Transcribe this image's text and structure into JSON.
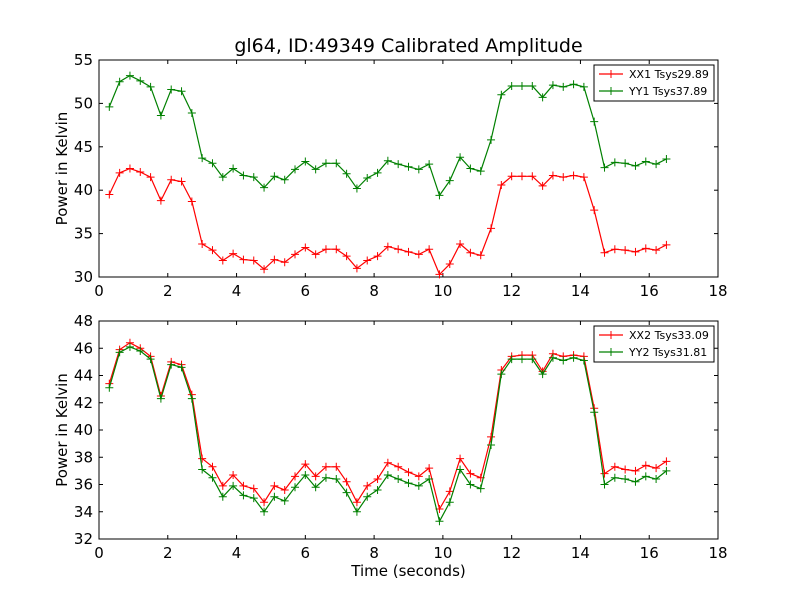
{
  "chart_data": [
    {
      "type": "line",
      "title": "gl64, ID:49349 Calibrated Amplitude",
      "xlabel": "",
      "ylabel": "Power in Kelvin",
      "xlim": [
        0,
        18
      ],
      "ylim": [
        30,
        55
      ],
      "xticks": [
        "0",
        "2",
        "4",
        "6",
        "8",
        "10",
        "12",
        "14",
        "16",
        "18"
      ],
      "yticks": [
        "30",
        "35",
        "40",
        "45",
        "50",
        "55"
      ],
      "grid": false,
      "legend": "top-right",
      "x": [
        0.3,
        0.6,
        0.9,
        1.2,
        1.5,
        1.8,
        2.1,
        2.4,
        2.7,
        3.0,
        3.3,
        3.6,
        3.9,
        4.2,
        4.5,
        4.8,
        5.1,
        5.4,
        5.7,
        6.0,
        6.3,
        6.6,
        6.9,
        7.2,
        7.5,
        7.8,
        8.1,
        8.4,
        8.7,
        9.0,
        9.3,
        9.6,
        9.9,
        10.2,
        10.5,
        10.8,
        11.1,
        11.4,
        11.7,
        12.0,
        12.3,
        12.6,
        12.9,
        13.2,
        13.5,
        13.8,
        14.1,
        14.4,
        14.7,
        15.0,
        15.3,
        15.6,
        15.9,
        16.2,
        16.5
      ],
      "series": [
        {
          "name": "XX1 Tsys29.89",
          "color": "#ff0000",
          "values": [
            39.5,
            42.0,
            42.5,
            42.1,
            41.5,
            38.8,
            41.2,
            41.0,
            38.7,
            33.8,
            33.1,
            31.9,
            32.7,
            32.0,
            31.9,
            30.9,
            32.0,
            31.7,
            32.6,
            33.4,
            32.6,
            33.2,
            33.2,
            32.4,
            31.0,
            31.9,
            32.4,
            33.5,
            33.2,
            32.9,
            32.6,
            33.2,
            30.3,
            31.5,
            33.8,
            32.8,
            32.5,
            35.6,
            40.6,
            41.6,
            41.6,
            41.6,
            40.5,
            41.7,
            41.5,
            41.7,
            41.5,
            37.7,
            32.8,
            33.2,
            33.1,
            32.9,
            33.3,
            33.1,
            33.7
          ]
        },
        {
          "name": "YY1 Tsys37.89",
          "color": "#008000",
          "values": [
            49.6,
            52.5,
            53.2,
            52.6,
            51.9,
            48.6,
            51.6,
            51.4,
            48.9,
            43.7,
            43.1,
            41.5,
            42.5,
            41.7,
            41.5,
            40.3,
            41.6,
            41.2,
            42.4,
            43.3,
            42.4,
            43.1,
            43.1,
            41.9,
            40.2,
            41.4,
            42.0,
            43.4,
            43.0,
            42.7,
            42.4,
            43.0,
            39.4,
            41.1,
            43.8,
            42.5,
            42.2,
            45.8,
            51.0,
            52.0,
            52.0,
            52.0,
            50.7,
            52.1,
            51.9,
            52.2,
            51.9,
            47.9,
            42.6,
            43.2,
            43.1,
            42.8,
            43.3,
            43.0,
            43.6
          ]
        }
      ]
    },
    {
      "type": "line",
      "title": "",
      "xlabel": "Time (seconds)",
      "ylabel": "Power in Kelvin",
      "xlim": [
        0,
        18
      ],
      "ylim": [
        32,
        48
      ],
      "xticks": [
        "0",
        "2",
        "4",
        "6",
        "8",
        "10",
        "12",
        "14",
        "16",
        "18"
      ],
      "yticks": [
        "32",
        "34",
        "36",
        "38",
        "40",
        "42",
        "44",
        "46",
        "48"
      ],
      "grid": false,
      "legend": "top-right",
      "x": [
        0.3,
        0.6,
        0.9,
        1.2,
        1.5,
        1.8,
        2.1,
        2.4,
        2.7,
        3.0,
        3.3,
        3.6,
        3.9,
        4.2,
        4.5,
        4.8,
        5.1,
        5.4,
        5.7,
        6.0,
        6.3,
        6.6,
        6.9,
        7.2,
        7.5,
        7.8,
        8.1,
        8.4,
        8.7,
        9.0,
        9.3,
        9.6,
        9.9,
        10.2,
        10.5,
        10.8,
        11.1,
        11.4,
        11.7,
        12.0,
        12.3,
        12.6,
        12.9,
        13.2,
        13.5,
        13.8,
        14.1,
        14.4,
        14.7,
        15.0,
        15.3,
        15.6,
        15.9,
        16.2,
        16.5
      ],
      "series": [
        {
          "name": "XX2 Tsys33.09",
          "color": "#ff0000",
          "values": [
            43.4,
            45.9,
            46.4,
            46.0,
            45.4,
            42.5,
            45.0,
            44.8,
            42.6,
            37.9,
            37.3,
            35.9,
            36.7,
            35.9,
            35.7,
            34.7,
            35.9,
            35.6,
            36.6,
            37.5,
            36.6,
            37.3,
            37.3,
            36.2,
            34.7,
            35.9,
            36.4,
            37.6,
            37.3,
            36.9,
            36.6,
            37.2,
            34.2,
            35.5,
            37.9,
            36.8,
            36.5,
            39.5,
            44.4,
            45.4,
            45.5,
            45.5,
            44.3,
            45.6,
            45.4,
            45.5,
            45.4,
            41.6,
            36.8,
            37.3,
            37.1,
            37.0,
            37.4,
            37.2,
            37.7
          ]
        },
        {
          "name": "YY2 Tsys31.81",
          "color": "#008000",
          "values": [
            43.1,
            45.7,
            46.1,
            45.8,
            45.2,
            42.3,
            44.8,
            44.6,
            42.3,
            37.1,
            36.5,
            35.1,
            35.9,
            35.2,
            35.0,
            34.0,
            35.1,
            34.8,
            35.8,
            36.7,
            35.8,
            36.5,
            36.4,
            35.4,
            34.0,
            35.1,
            35.6,
            36.7,
            36.4,
            36.1,
            35.9,
            36.4,
            33.3,
            34.7,
            37.1,
            36.0,
            35.7,
            38.9,
            44.1,
            45.2,
            45.2,
            45.2,
            44.1,
            45.3,
            45.1,
            45.3,
            45.1,
            41.3,
            36.0,
            36.5,
            36.4,
            36.2,
            36.6,
            36.4,
            37.0
          ]
        }
      ]
    }
  ]
}
